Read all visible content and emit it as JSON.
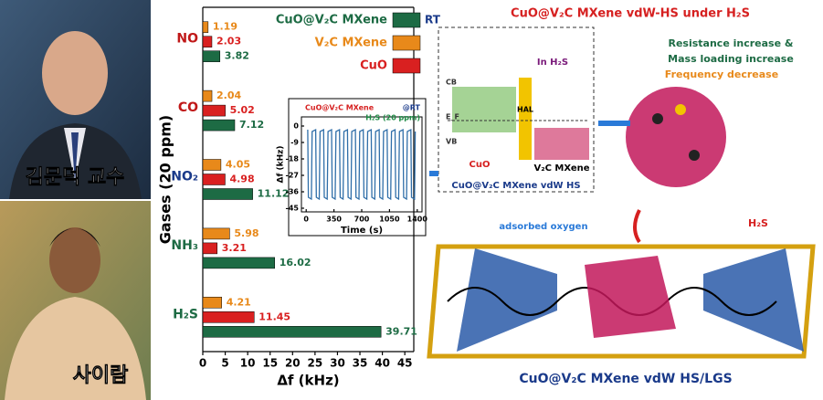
{
  "photos": {
    "captions": [
      "김문덕 교수",
      "사이람"
    ]
  },
  "chart_data": [
    {
      "type": "bar",
      "orientation": "horizontal",
      "categories": [
        "NO",
        "CO",
        "NO₂",
        "NH₃",
        "H₂S"
      ],
      "series": [
        {
          "name": "CuO@V₂C MXene",
          "color": "#1d6b44",
          "values": [
            3.82,
            7.12,
            11.12,
            16.02,
            39.71
          ]
        },
        {
          "name": "V₂C MXene",
          "color": "#e8891a",
          "values": [
            1.19,
            2.04,
            4.05,
            5.98,
            4.21
          ]
        },
        {
          "name": "CuO",
          "color": "#d92020",
          "values": [
            2.03,
            5.02,
            4.98,
            3.21,
            11.45
          ]
        }
      ],
      "legend_note": "RT",
      "xlim": [
        0,
        47
      ],
      "xticks": [
        0,
        5,
        10,
        15,
        20,
        25,
        30,
        35,
        40,
        45
      ],
      "x_label": "Δf (kHz)",
      "y_label": "Gases (20 ppm)"
    },
    {
      "type": "line",
      "annotations": [
        "CuO@V₂C MXene",
        "@RT",
        "H₂S (20 ppm)"
      ],
      "x": [
        20,
        28,
        65,
        75,
        120,
        128,
        165,
        175,
        220,
        228,
        265,
        275,
        320,
        328,
        365,
        375,
        420,
        428,
        465,
        475,
        520,
        528,
        565,
        575,
        620,
        628,
        665,
        675,
        720,
        728,
        765,
        775,
        820,
        828,
        865,
        875,
        920,
        928,
        965,
        975,
        1020,
        1028,
        1065,
        1075,
        1120,
        1128,
        1165,
        1175,
        1220,
        1228,
        1265,
        1275,
        1320,
        1328,
        1365,
        1375
      ],
      "series": [
        {
          "name": null,
          "color": "#2f6ea8",
          "values": [
            -2,
            -39,
            -40,
            -3,
            -2,
            -39,
            -40,
            -3,
            -2,
            -39,
            -40,
            -3,
            -2,
            -39,
            -40,
            -3,
            -2,
            -39,
            -40,
            -3,
            -2,
            -39,
            -40,
            -3,
            -2,
            -39,
            -40,
            -3,
            -2,
            -39,
            -40,
            -3,
            -2,
            -39,
            -40,
            -3,
            -2,
            -39,
            -40,
            -3,
            -2,
            -39,
            -40,
            -3,
            -2,
            -39,
            -40,
            -3,
            -2,
            -39,
            -40,
            -3,
            -2,
            -39,
            -40,
            -3
          ]
        }
      ],
      "xlim": [
        -60,
        1460
      ],
      "xticks": [
        0,
        350,
        700,
        1050,
        1400
      ],
      "ylim": [
        -47,
        5
      ],
      "yticks": [
        0,
        -9,
        -18,
        -27,
        -36,
        -45
      ],
      "x_label": "Time (s)",
      "y_label": "Δf (kHz)"
    }
  ],
  "schematic": {
    "title": "CuO@V₂C MXene vdW-HS under H₂S",
    "effects": [
      "Resistance increase &",
      "Mass loading increase",
      "Frequency decrease"
    ],
    "band_labels": [
      "In H₂S",
      "CB",
      "E_F",
      "VB",
      "HAL",
      "CuO",
      "V₂C MXene"
    ],
    "inset_caption": "CuO@V₂C MXene vdW HS",
    "legend": "adsorbed oxygen",
    "gas": "H₂S",
    "caption": "CuO@V₂C MXene vdW HS/LGS"
  }
}
